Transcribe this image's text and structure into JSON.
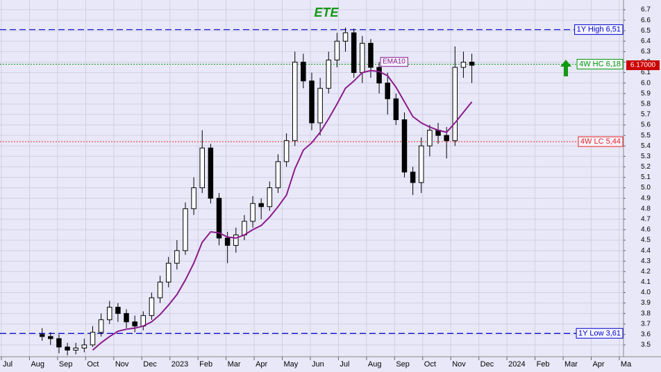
{
  "chart_data": {
    "type": "candlestick",
    "title": "ETE",
    "x": [
      1.45,
      1.75,
      2.05,
      2.35,
      2.65,
      2.95,
      3.25,
      3.55,
      3.85,
      4.15,
      4.45,
      4.75,
      5.05,
      5.35,
      5.65,
      5.95,
      6.25,
      6.55,
      6.85,
      7.15,
      7.45,
      7.75,
      8.05,
      8.35,
      8.65,
      8.95,
      9.25,
      9.55,
      9.85,
      10.15,
      10.45,
      10.75,
      11.05,
      11.35,
      11.65,
      11.95,
      12.25,
      12.55,
      12.85,
      13.15,
      13.45,
      13.75,
      14.05,
      14.35,
      14.65,
      14.95,
      15.25,
      15.55,
      15.85,
      16.15,
      16.45,
      16.75
    ],
    "open": [
      3.6,
      3.58,
      3.56,
      3.48,
      3.45,
      3.47,
      3.5,
      3.62,
      3.74,
      3.86,
      3.8,
      3.72,
      3.68,
      3.78,
      3.95,
      4.1,
      4.28,
      4.4,
      4.8,
      5.0,
      5.38,
      4.9,
      4.52,
      4.45,
      4.55,
      4.68,
      4.85,
      4.82,
      5.0,
      5.25,
      5.45,
      6.2,
      6.02,
      5.62,
      5.95,
      6.22,
      6.4,
      6.48,
      6.1,
      6.38,
      6.15,
      6.0,
      5.85,
      5.65,
      5.15,
      5.05,
      5.4,
      5.55,
      5.5,
      5.45,
      6.15,
      6.2
    ],
    "high": [
      3.66,
      3.62,
      3.6,
      3.52,
      3.52,
      3.56,
      3.68,
      3.8,
      3.92,
      3.9,
      3.84,
      3.78,
      3.82,
      4.0,
      4.16,
      4.34,
      4.5,
      4.86,
      5.1,
      5.55,
      5.42,
      4.95,
      4.58,
      4.62,
      4.74,
      4.92,
      4.9,
      5.06,
      5.32,
      5.52,
      6.3,
      6.28,
      6.1,
      6.05,
      6.3,
      6.48,
      6.53,
      6.52,
      6.45,
      6.42,
      6.2,
      6.1,
      5.9,
      5.72,
      5.2,
      5.48,
      5.6,
      5.62,
      5.58,
      6.35,
      6.3,
      6.28
    ],
    "low": [
      3.54,
      3.5,
      3.42,
      3.4,
      3.41,
      3.43,
      3.48,
      3.58,
      3.7,
      3.72,
      3.66,
      3.62,
      3.64,
      3.74,
      3.9,
      4.05,
      4.22,
      4.36,
      4.74,
      4.95,
      4.85,
      4.45,
      4.28,
      4.38,
      4.5,
      4.62,
      4.7,
      4.78,
      4.95,
      5.2,
      5.4,
      5.95,
      5.55,
      5.5,
      5.9,
      6.15,
      6.3,
      6.05,
      6.0,
      6.05,
      5.9,
      5.7,
      5.6,
      5.1,
      4.93,
      4.95,
      5.3,
      5.42,
      5.28,
      5.4,
      6.05,
      6.0
    ],
    "close": [
      3.58,
      3.56,
      3.48,
      3.45,
      3.47,
      3.5,
      3.62,
      3.74,
      3.86,
      3.8,
      3.72,
      3.68,
      3.78,
      3.95,
      4.1,
      4.28,
      4.4,
      4.8,
      5.0,
      5.38,
      4.9,
      4.52,
      4.45,
      4.55,
      4.68,
      4.85,
      4.82,
      5.0,
      5.25,
      5.45,
      6.2,
      6.02,
      5.62,
      5.95,
      6.22,
      6.4,
      6.48,
      6.1,
      6.38,
      6.15,
      6.0,
      5.85,
      5.65,
      5.15,
      5.05,
      5.4,
      5.55,
      5.5,
      5.45,
      6.15,
      6.2,
      6.17
    ],
    "series": [
      {
        "name": "EMA10",
        "color": "#8b1a8b",
        "values": [
          null,
          null,
          null,
          null,
          null,
          null,
          3.45,
          3.52,
          3.58,
          3.63,
          3.65,
          3.66,
          3.68,
          3.72,
          3.79,
          3.88,
          3.98,
          4.12,
          4.28,
          4.48,
          4.58,
          4.57,
          4.53,
          4.52,
          4.55,
          4.6,
          4.64,
          4.72,
          4.82,
          4.93,
          5.18,
          5.36,
          5.43,
          5.53,
          5.66,
          5.8,
          5.95,
          6.02,
          6.1,
          6.12,
          6.11,
          6.07,
          5.96,
          5.82,
          5.68,
          5.62,
          5.58,
          5.55,
          5.53,
          5.62,
          5.72,
          5.82
        ]
      }
    ],
    "ref_lines": [
      {
        "label": "1Y High 6,51",
        "value": 6.51,
        "color": "#0000cc",
        "style": "dashed"
      },
      {
        "label": "4W HC 6,18",
        "value": 6.18,
        "color": "#009900",
        "style": "dotted"
      },
      {
        "label": "4W LC 5,44",
        "value": 5.44,
        "color": "#ee2222",
        "style": "dotted"
      },
      {
        "label": "1Y Low 3,61",
        "value": 3.61,
        "color": "#0000cc",
        "style": "dashed"
      }
    ],
    "last_price": {
      "value": 6.17,
      "label": "6.17000"
    },
    "xlim": [
      -0.05,
      22.15
    ],
    "ylim": [
      3.387,
      6.793
    ],
    "xticks": [
      {
        "value": 0,
        "label": "Jul"
      },
      {
        "value": 1,
        "label": "Aug"
      },
      {
        "value": 2,
        "label": "Sep"
      },
      {
        "value": 3,
        "label": "Oct"
      },
      {
        "value": 4,
        "label": "Nov"
      },
      {
        "value": 5,
        "label": "Dec"
      },
      {
        "value": 6,
        "label": "2023"
      },
      {
        "value": 7,
        "label": "Feb"
      },
      {
        "value": 8,
        "label": "Mar"
      },
      {
        "value": 9,
        "label": "Apr"
      },
      {
        "value": 10,
        "label": "May"
      },
      {
        "value": 11,
        "label": "Jun"
      },
      {
        "value": 12,
        "label": "Jul"
      },
      {
        "value": 13,
        "label": "Aug"
      },
      {
        "value": 14,
        "label": "Sep"
      },
      {
        "value": 15,
        "label": "Oct"
      },
      {
        "value": 16,
        "label": "Nov"
      },
      {
        "value": 17,
        "label": "Dec"
      },
      {
        "value": 18,
        "label": "2024"
      },
      {
        "value": 19,
        "label": "Feb"
      },
      {
        "value": 20,
        "label": "Mar"
      },
      {
        "value": 21,
        "label": "Apr"
      },
      {
        "value": 22,
        "label": "Ma"
      }
    ],
    "yticks": [
      3.5,
      3.6,
      3.7,
      3.8,
      3.9,
      {
        "value": 4,
        "label": "4.0"
      },
      4.1,
      4.2,
      4.3,
      4.4,
      4.5,
      4.6,
      4.7,
      4.8,
      4.9,
      {
        "value": 5,
        "label": "5.0"
      },
      5.1,
      5.2,
      5.3,
      5.4,
      5.5,
      5.6,
      5.7,
      5.8,
      5.9,
      {
        "value": 6,
        "label": "6.0"
      },
      6.1,
      6.2,
      6.3,
      6.4,
      6.5,
      6.6,
      6.7
    ],
    "grid": true
  }
}
